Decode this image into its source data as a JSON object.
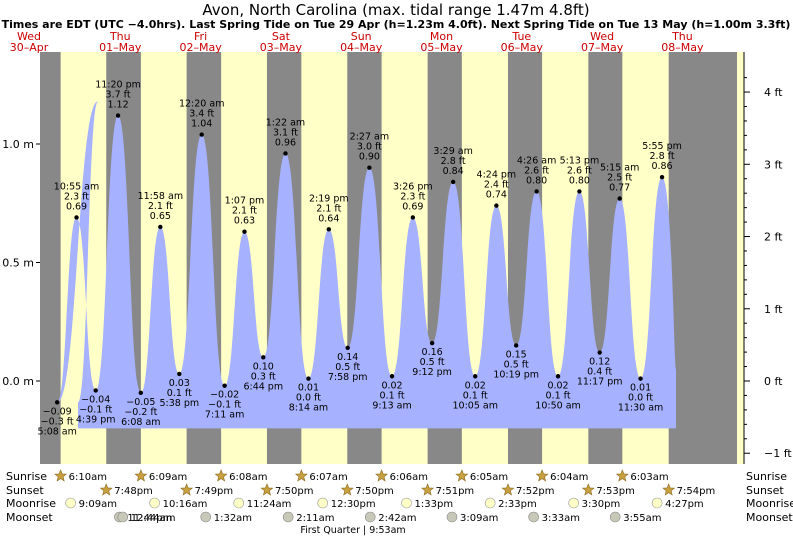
{
  "chart_data": {
    "type": "area",
    "title": "Avon, North Carolina (max. tidal range 1.47m 4.8ft)",
    "subtitle": "Times are EDT (UTC −4.0hrs). Last Spring Tide on Tue 29 Apr (h=1.23m 4.0ft). Next Spring Tide on Tue 13 May (h=1.00m 3.3ft)",
    "colors": {
      "tide": "#a6b1ff",
      "day": "#ffffc8",
      "night": "#888888",
      "red": "#ff0000"
    },
    "grid": false,
    "legend": "none",
    "ylim_m": [
      -0.22,
      1.33
    ],
    "left_axis_ticks": [
      {
        "v": 1.0,
        "label": "1.0 m"
      },
      {
        "v": 0.5,
        "label": "0.5 m"
      },
      {
        "v": 0.0,
        "label": "0.0 m"
      }
    ],
    "right_axis_ticks": [
      {
        "ft": 4,
        "label": "4 ft"
      },
      {
        "ft": 3,
        "label": "3 ft"
      },
      {
        "ft": 2,
        "label": "2 ft"
      },
      {
        "ft": 1,
        "label": "1 ft"
      },
      {
        "ft": 0,
        "label": "0 ft"
      },
      {
        "ft": -1,
        "label": "−1 ft"
      }
    ],
    "days": [
      {
        "dow": "Wed",
        "date": "30–Apr",
        "weekend": false
      },
      {
        "dow": "Thu",
        "date": "01–May",
        "weekend": false
      },
      {
        "dow": "Fri",
        "date": "02–May",
        "weekend": false
      },
      {
        "dow": "Sat",
        "date": "03–May",
        "weekend": true
      },
      {
        "dow": "Sun",
        "date": "04–May",
        "weekend": true
      },
      {
        "dow": "Mon",
        "date": "05–May",
        "weekend": false
      },
      {
        "dow": "Tue",
        "date": "06–May",
        "weekend": false
      },
      {
        "dow": "Wed",
        "date": "07–May",
        "weekend": false
      },
      {
        "dow": "Thu",
        "date": "08–May",
        "weekend": false
      }
    ],
    "tides": [
      {
        "day": 0,
        "time": "5:08 am",
        "m": -0.09,
        "ft": "−0.3 ft",
        "m_label": "−0.09",
        "type": "low"
      },
      {
        "day": 0,
        "time": "10:55 am",
        "m": 0.69,
        "ft": "2.3 ft",
        "m_label": "0.69",
        "type": "high"
      },
      {
        "day": 0,
        "time": "4:39 pm",
        "m": -0.04,
        "ft": "−0.1 ft",
        "m_label": "−0.04",
        "type": "low"
      },
      {
        "day": 0,
        "time": "11:20 pm",
        "m": 1.12,
        "ft": "3.7 ft",
        "m_label": "1.12",
        "type": "high"
      },
      {
        "day": 1,
        "time": "6:08 am",
        "m": -0.05,
        "ft": "−0.2 ft",
        "m_label": "−0.05",
        "type": "low"
      },
      {
        "day": 1,
        "time": "11:58 am",
        "m": 0.65,
        "ft": "2.1 ft",
        "m_label": "0.65",
        "type": "high"
      },
      {
        "day": 1,
        "time": "5:38 pm",
        "m": 0.03,
        "ft": "0.1 ft",
        "m_label": "0.03",
        "type": "low"
      },
      {
        "day": 2,
        "time": "12:20 am",
        "m": 1.04,
        "ft": "3.4 ft",
        "m_label": "1.04",
        "type": "high"
      },
      {
        "day": 2,
        "time": "7:11 am",
        "m": -0.02,
        "ft": "−0.1 ft",
        "m_label": "−0.02",
        "type": "low"
      },
      {
        "day": 2,
        "time": "1:07 pm",
        "m": 0.63,
        "ft": "2.1 ft",
        "m_label": "0.63",
        "type": "high"
      },
      {
        "day": 2,
        "time": "6:44 pm",
        "m": 0.1,
        "ft": "0.3 ft",
        "m_label": "0.10",
        "type": "low"
      },
      {
        "day": 3,
        "time": "1:22 am",
        "m": 0.96,
        "ft": "3.1 ft",
        "m_label": "0.96",
        "type": "high"
      },
      {
        "day": 3,
        "time": "8:14 am",
        "m": 0.01,
        "ft": "0.0 ft",
        "m_label": "0.01",
        "type": "low"
      },
      {
        "day": 3,
        "time": "2:19 pm",
        "m": 0.64,
        "ft": "2.1 ft",
        "m_label": "0.64",
        "type": "high"
      },
      {
        "day": 3,
        "time": "7:58 pm",
        "m": 0.14,
        "ft": "0.5 ft",
        "m_label": "0.14",
        "type": "low"
      },
      {
        "day": 4,
        "time": "2:27 am",
        "m": 0.9,
        "ft": "3.0 ft",
        "m_label": "0.90",
        "type": "high"
      },
      {
        "day": 4,
        "time": "9:13 am",
        "m": 0.02,
        "ft": "0.1 ft",
        "m_label": "0.02",
        "type": "low"
      },
      {
        "day": 4,
        "time": "3:26 pm",
        "m": 0.69,
        "ft": "2.3 ft",
        "m_label": "0.69",
        "type": "high"
      },
      {
        "day": 4,
        "time": "9:12 pm",
        "m": 0.16,
        "ft": "0.5 ft",
        "m_label": "0.16",
        "type": "low"
      },
      {
        "day": 5,
        "time": "3:29 am",
        "m": 0.84,
        "ft": "2.8 ft",
        "m_label": "0.84",
        "type": "high"
      },
      {
        "day": 5,
        "time": "10:05 am",
        "m": 0.02,
        "ft": "0.1 ft",
        "m_label": "0.02",
        "type": "low"
      },
      {
        "day": 5,
        "time": "4:24 pm",
        "m": 0.74,
        "ft": "2.4 ft",
        "m_label": "0.74",
        "type": "high"
      },
      {
        "day": 5,
        "time": "10:19 pm",
        "m": 0.15,
        "ft": "0.5 ft",
        "m_label": "0.15",
        "type": "low"
      },
      {
        "day": 6,
        "time": "4:26 am",
        "m": 0.8,
        "ft": "2.6 ft",
        "m_label": "0.80",
        "type": "high"
      },
      {
        "day": 6,
        "time": "10:50 am",
        "m": 0.02,
        "ft": "0.1 ft",
        "m_label": "0.02",
        "type": "low"
      },
      {
        "day": 6,
        "time": "5:13 pm",
        "m": 0.8,
        "ft": "2.6 ft",
        "m_label": "0.80",
        "type": "high"
      },
      {
        "day": 6,
        "time": "11:17 pm",
        "m": 0.12,
        "ft": "0.4 ft",
        "m_label": "0.12",
        "type": "low"
      },
      {
        "day": 7,
        "time": "5:15 am",
        "m": 0.77,
        "ft": "2.5 ft",
        "m_label": "0.77",
        "type": "high"
      },
      {
        "day": 7,
        "time": "11:30 am",
        "m": 0.01,
        "ft": "0.0 ft",
        "m_label": "0.01",
        "type": "low"
      },
      {
        "day": 7,
        "time": "5:55 pm",
        "m": 0.86,
        "ft": "2.8 ft",
        "m_label": "0.86",
        "type": "high"
      }
    ],
    "astro_rows": [
      {
        "key": "sunrise",
        "label": "Sunrise",
        "color": "#c8a040"
      },
      {
        "key": "sunset",
        "label": "Sunset",
        "color": "#c8a040"
      },
      {
        "key": "moonrise",
        "label": "Moonrise",
        "color": "#ffffc8"
      },
      {
        "key": "moonset",
        "label": "Moonset",
        "color": "#c8c8b8"
      }
    ],
    "sunrise": [
      {
        "day": 0,
        "time": "6:10am"
      },
      {
        "day": 1,
        "time": "6:09am"
      },
      {
        "day": 2,
        "time": "6:08am"
      },
      {
        "day": 3,
        "time": "6:07am"
      },
      {
        "day": 4,
        "time": "6:06am"
      },
      {
        "day": 5,
        "time": "6:05am"
      },
      {
        "day": 6,
        "time": "6:04am"
      },
      {
        "day": 7,
        "time": "6:03am"
      }
    ],
    "sunset": [
      {
        "day": 0,
        "time": "7:48pm"
      },
      {
        "day": 1,
        "time": "7:49pm"
      },
      {
        "day": 2,
        "time": "7:50pm"
      },
      {
        "day": 3,
        "time": "7:50pm"
      },
      {
        "day": 4,
        "time": "7:51pm"
      },
      {
        "day": 5,
        "time": "7:52pm"
      },
      {
        "day": 6,
        "time": "7:53pm"
      },
      {
        "day": 7,
        "time": "7:54pm"
      }
    ],
    "moonrise": [
      {
        "day": 0,
        "time": "9:09am"
      },
      {
        "day": 1,
        "time": "10:16am"
      },
      {
        "day": 2,
        "time": "11:24am"
      },
      {
        "day": 3,
        "time": "12:30pm"
      },
      {
        "day": 4,
        "time": "1:33pm"
      },
      {
        "day": 5,
        "time": "2:33pm"
      },
      {
        "day": 6,
        "time": "3:30pm"
      },
      {
        "day": 7,
        "time": "4:27pm"
      }
    ],
    "moonset": [
      {
        "day": 0,
        "time": "11:44pm"
      },
      {
        "day": 1,
        "time": "12:44am"
      },
      {
        "day": 2,
        "time": "1:32am"
      },
      {
        "day": 3,
        "time": "2:11am"
      },
      {
        "day": 4,
        "time": "2:42am"
      },
      {
        "day": 5,
        "time": "3:09am"
      },
      {
        "day": 6,
        "time": "3:33am"
      },
      {
        "day": 7,
        "time": "3:55am"
      }
    ],
    "moon_phase": {
      "label": "First Quarter",
      "time": "9:53am"
    }
  }
}
